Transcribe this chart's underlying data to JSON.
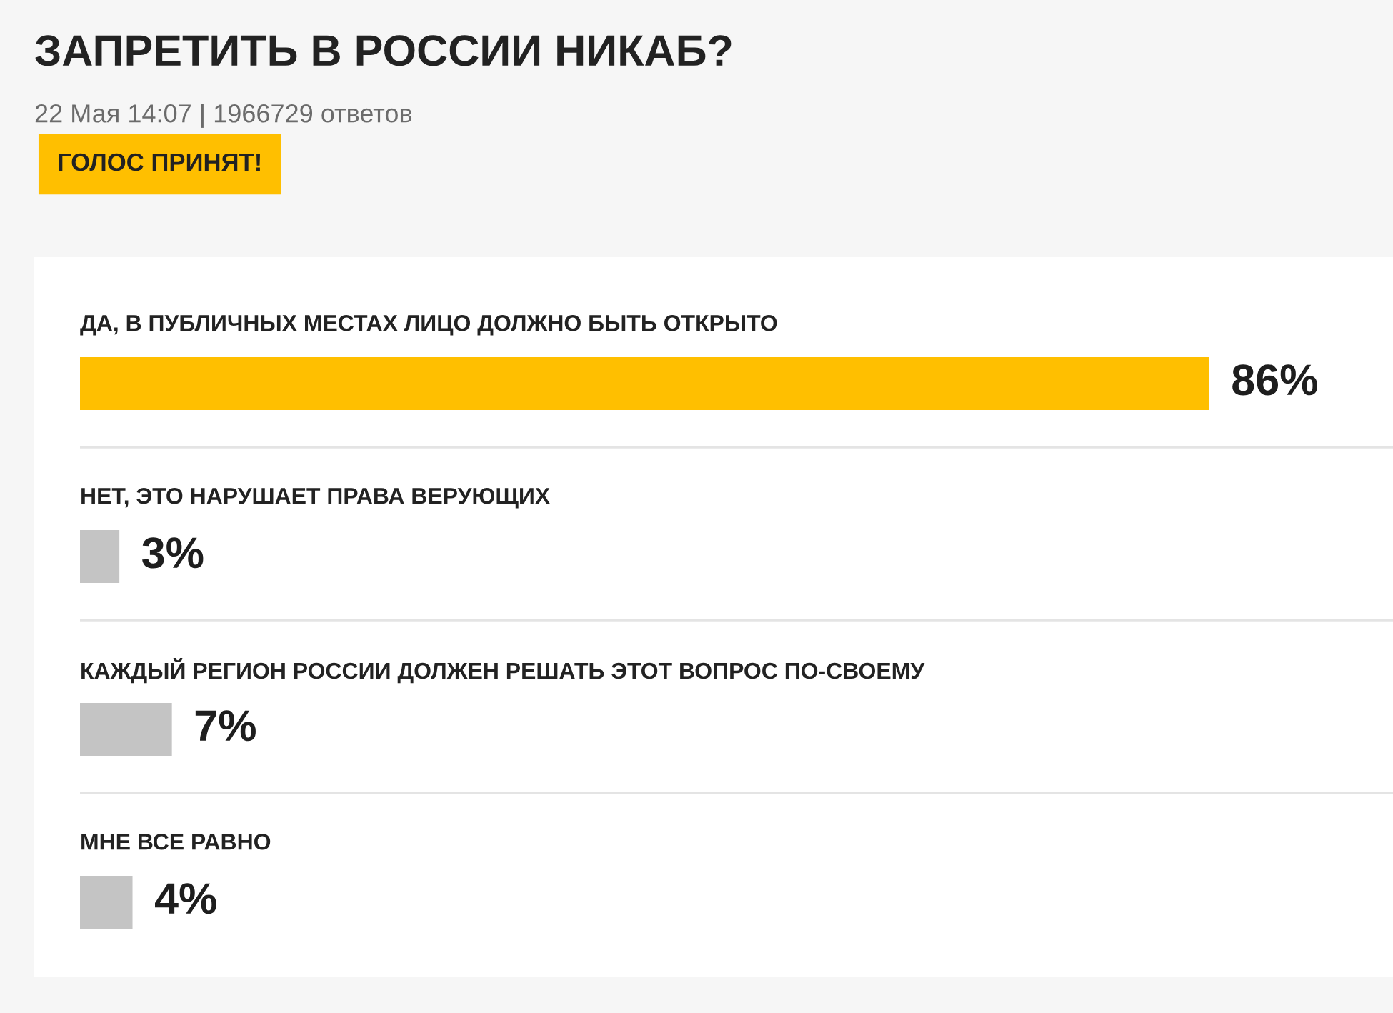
{
  "chart_data": {
    "type": "bar",
    "orientation": "horizontal",
    "title": "ЗАПРЕТИТЬ В РОССИИ НИКАБ?",
    "subtitle": "22 Мая 14:07 | 1966729 ответов",
    "annotations": [
      "ГОЛОС ПРИНЯТ!"
    ],
    "categories": [
      "ДА, В ПУБЛИЧНЫХ МЕСТАХ ЛИЦО ДОЛЖНО БЫТЬ ОТКРЫТО",
      "НЕТ, ЭТО НАРУШАЕТ ПРАВА ВЕРУЮЩИХ",
      "КАЖДЫЙ РЕГИОН РОССИИ ДОЛЖЕН РЕШАТЬ ЭТОТ ВОПРОС ПО-СВОЕМУ",
      "МНЕ ВСЕ РАВНО"
    ],
    "values": [
      86,
      3,
      7,
      4
    ],
    "colors": [
      "#ffbf00",
      "#c4c4c4",
      "#c4c4c4",
      "#c4c4c4"
    ],
    "value_labels": [
      "86%",
      "3%",
      "7%",
      "4%"
    ],
    "xlim": [
      0,
      100
    ],
    "tick_labels": "y",
    "grid": "y"
  }
}
